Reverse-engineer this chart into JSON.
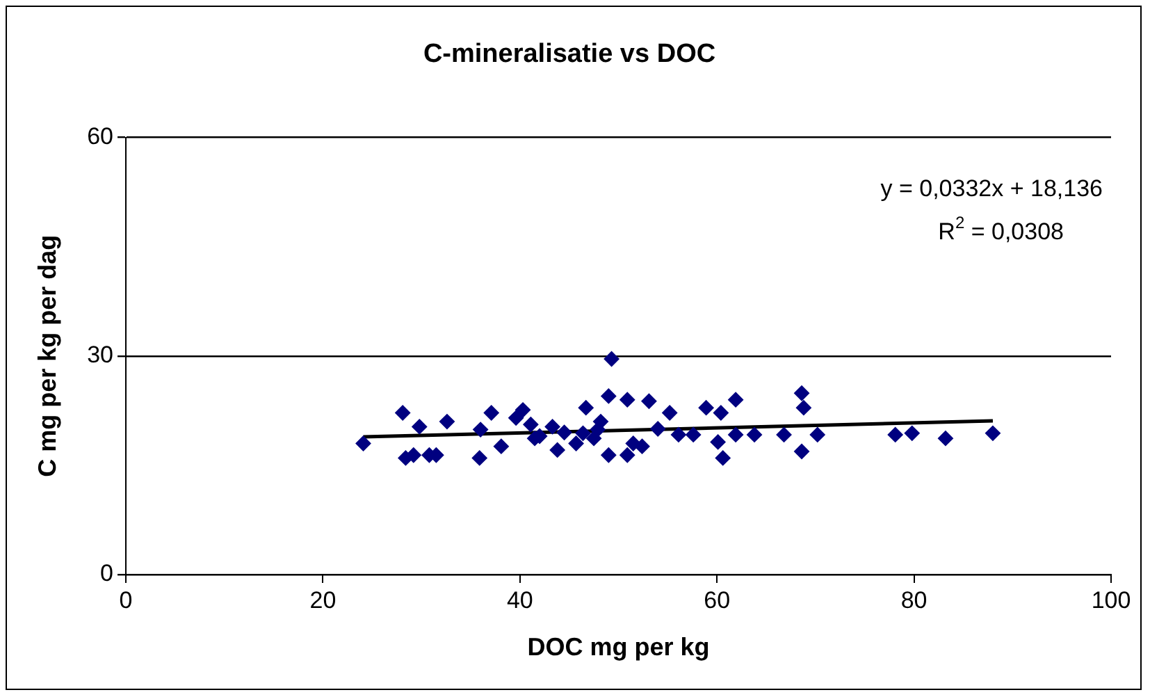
{
  "chart_data": {
    "type": "scatter",
    "title": "C-mineralisatie vs DOC",
    "xlabel": "DOC mg per kg",
    "ylabel": "C mg per kg per dag",
    "annotations": [
      "y = 0,0332x + 18,136",
      "R$^{2}$ = 0,0308"
    ],
    "xlim": [
      0,
      100
    ],
    "xticks": [
      0,
      20,
      40,
      60,
      80,
      100
    ],
    "ylim": [
      0,
      60
    ],
    "yticks": [
      0,
      30,
      60
    ],
    "grid": "y",
    "legend": false,
    "marker": "diamond",
    "series": [
      {
        "color": "#000080",
        "x": [
          24.1,
          28.1,
          28.4,
          29.2,
          29.8,
          30.8,
          31.5,
          32.6,
          35.9,
          36.0,
          37.1,
          38.1,
          39.6,
          40.3,
          41.1,
          41.5,
          43.3,
          43.8,
          45.7,
          49.3,
          49.0,
          46.7,
          50.9,
          53.1,
          47.5,
          49.0,
          50.9,
          52.4,
          55.2,
          56.1,
          57.6,
          58.9,
          60.4,
          61.9,
          60.6,
          60.1,
          61.9,
          63.8,
          66.8,
          68.6,
          68.8,
          68.6,
          70.2,
          47.9,
          46.4,
          78.1,
          79.8,
          83.2,
          88.0,
          44.5,
          48.2,
          51.5,
          54.0,
          42.0
        ],
        "values": [
          18.0,
          22.2,
          16.0,
          16.4,
          20.3,
          16.4,
          16.4,
          21.0,
          16.0,
          19.9,
          22.2,
          17.6,
          21.5,
          22.6,
          20.6,
          18.7,
          20.3,
          17.1,
          18.0,
          29.6,
          24.5,
          22.9,
          24.0,
          23.8,
          18.7,
          16.4,
          16.4,
          17.6,
          22.2,
          19.2,
          19.2,
          22.9,
          22.2,
          24.0,
          16.0,
          18.2,
          19.2,
          19.2,
          19.2,
          24.9,
          22.9,
          16.9,
          19.2,
          19.9,
          19.4,
          19.2,
          19.4,
          18.7,
          19.4,
          19.5,
          21.0,
          18.0,
          20.0,
          19.0
        ]
      },
      {
        "type": "line",
        "marker": "none",
        "color": "#000000",
        "x": [
          24.1,
          88.0
        ],
        "values": [
          18.9,
          21.1
        ]
      }
    ]
  }
}
